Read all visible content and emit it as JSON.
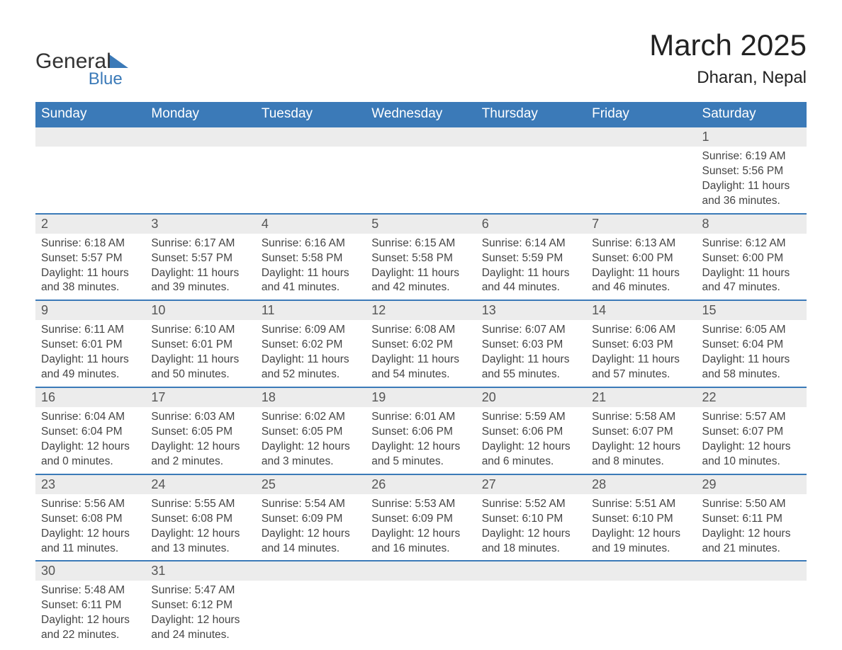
{
  "brand": {
    "name_primary": "General",
    "name_secondary": "Blue",
    "color_primary": "#3b7ab8",
    "text_color": "#333333"
  },
  "title": {
    "month_year": "March 2025",
    "location": "Dharan, Nepal",
    "title_fontsize": 42,
    "location_fontsize": 24,
    "text_color": "#222222"
  },
  "calendar": {
    "type": "table",
    "header_bg": "#3b7ab8",
    "header_text_color": "#ffffff",
    "daynum_bg": "#ececec",
    "daynum_color": "#555555",
    "body_text_color": "#444444",
    "row_border_color": "#3b7ab8",
    "background_color": "#ffffff",
    "columns": [
      "Sunday",
      "Monday",
      "Tuesday",
      "Wednesday",
      "Thursday",
      "Friday",
      "Saturday"
    ],
    "weeks": [
      [
        {
          "blank": true
        },
        {
          "blank": true
        },
        {
          "blank": true
        },
        {
          "blank": true
        },
        {
          "blank": true
        },
        {
          "blank": true
        },
        {
          "day": "1",
          "sunrise": "Sunrise: 6:19 AM",
          "sunset": "Sunset: 5:56 PM",
          "daylight": "Daylight: 11 hours and 36 minutes."
        }
      ],
      [
        {
          "day": "2",
          "sunrise": "Sunrise: 6:18 AM",
          "sunset": "Sunset: 5:57 PM",
          "daylight": "Daylight: 11 hours and 38 minutes."
        },
        {
          "day": "3",
          "sunrise": "Sunrise: 6:17 AM",
          "sunset": "Sunset: 5:57 PM",
          "daylight": "Daylight: 11 hours and 39 minutes."
        },
        {
          "day": "4",
          "sunrise": "Sunrise: 6:16 AM",
          "sunset": "Sunset: 5:58 PM",
          "daylight": "Daylight: 11 hours and 41 minutes."
        },
        {
          "day": "5",
          "sunrise": "Sunrise: 6:15 AM",
          "sunset": "Sunset: 5:58 PM",
          "daylight": "Daylight: 11 hours and 42 minutes."
        },
        {
          "day": "6",
          "sunrise": "Sunrise: 6:14 AM",
          "sunset": "Sunset: 5:59 PM",
          "daylight": "Daylight: 11 hours and 44 minutes."
        },
        {
          "day": "7",
          "sunrise": "Sunrise: 6:13 AM",
          "sunset": "Sunset: 6:00 PM",
          "daylight": "Daylight: 11 hours and 46 minutes."
        },
        {
          "day": "8",
          "sunrise": "Sunrise: 6:12 AM",
          "sunset": "Sunset: 6:00 PM",
          "daylight": "Daylight: 11 hours and 47 minutes."
        }
      ],
      [
        {
          "day": "9",
          "sunrise": "Sunrise: 6:11 AM",
          "sunset": "Sunset: 6:01 PM",
          "daylight": "Daylight: 11 hours and 49 minutes."
        },
        {
          "day": "10",
          "sunrise": "Sunrise: 6:10 AM",
          "sunset": "Sunset: 6:01 PM",
          "daylight": "Daylight: 11 hours and 50 minutes."
        },
        {
          "day": "11",
          "sunrise": "Sunrise: 6:09 AM",
          "sunset": "Sunset: 6:02 PM",
          "daylight": "Daylight: 11 hours and 52 minutes."
        },
        {
          "day": "12",
          "sunrise": "Sunrise: 6:08 AM",
          "sunset": "Sunset: 6:02 PM",
          "daylight": "Daylight: 11 hours and 54 minutes."
        },
        {
          "day": "13",
          "sunrise": "Sunrise: 6:07 AM",
          "sunset": "Sunset: 6:03 PM",
          "daylight": "Daylight: 11 hours and 55 minutes."
        },
        {
          "day": "14",
          "sunrise": "Sunrise: 6:06 AM",
          "sunset": "Sunset: 6:03 PM",
          "daylight": "Daylight: 11 hours and 57 minutes."
        },
        {
          "day": "15",
          "sunrise": "Sunrise: 6:05 AM",
          "sunset": "Sunset: 6:04 PM",
          "daylight": "Daylight: 11 hours and 58 minutes."
        }
      ],
      [
        {
          "day": "16",
          "sunrise": "Sunrise: 6:04 AM",
          "sunset": "Sunset: 6:04 PM",
          "daylight": "Daylight: 12 hours and 0 minutes."
        },
        {
          "day": "17",
          "sunrise": "Sunrise: 6:03 AM",
          "sunset": "Sunset: 6:05 PM",
          "daylight": "Daylight: 12 hours and 2 minutes."
        },
        {
          "day": "18",
          "sunrise": "Sunrise: 6:02 AM",
          "sunset": "Sunset: 6:05 PM",
          "daylight": "Daylight: 12 hours and 3 minutes."
        },
        {
          "day": "19",
          "sunrise": "Sunrise: 6:01 AM",
          "sunset": "Sunset: 6:06 PM",
          "daylight": "Daylight: 12 hours and 5 minutes."
        },
        {
          "day": "20",
          "sunrise": "Sunrise: 5:59 AM",
          "sunset": "Sunset: 6:06 PM",
          "daylight": "Daylight: 12 hours and 6 minutes."
        },
        {
          "day": "21",
          "sunrise": "Sunrise: 5:58 AM",
          "sunset": "Sunset: 6:07 PM",
          "daylight": "Daylight: 12 hours and 8 minutes."
        },
        {
          "day": "22",
          "sunrise": "Sunrise: 5:57 AM",
          "sunset": "Sunset: 6:07 PM",
          "daylight": "Daylight: 12 hours and 10 minutes."
        }
      ],
      [
        {
          "day": "23",
          "sunrise": "Sunrise: 5:56 AM",
          "sunset": "Sunset: 6:08 PM",
          "daylight": "Daylight: 12 hours and 11 minutes."
        },
        {
          "day": "24",
          "sunrise": "Sunrise: 5:55 AM",
          "sunset": "Sunset: 6:08 PM",
          "daylight": "Daylight: 12 hours and 13 minutes."
        },
        {
          "day": "25",
          "sunrise": "Sunrise: 5:54 AM",
          "sunset": "Sunset: 6:09 PM",
          "daylight": "Daylight: 12 hours and 14 minutes."
        },
        {
          "day": "26",
          "sunrise": "Sunrise: 5:53 AM",
          "sunset": "Sunset: 6:09 PM",
          "daylight": "Daylight: 12 hours and 16 minutes."
        },
        {
          "day": "27",
          "sunrise": "Sunrise: 5:52 AM",
          "sunset": "Sunset: 6:10 PM",
          "daylight": "Daylight: 12 hours and 18 minutes."
        },
        {
          "day": "28",
          "sunrise": "Sunrise: 5:51 AM",
          "sunset": "Sunset: 6:10 PM",
          "daylight": "Daylight: 12 hours and 19 minutes."
        },
        {
          "day": "29",
          "sunrise": "Sunrise: 5:50 AM",
          "sunset": "Sunset: 6:11 PM",
          "daylight": "Daylight: 12 hours and 21 minutes."
        }
      ],
      [
        {
          "day": "30",
          "sunrise": "Sunrise: 5:48 AM",
          "sunset": "Sunset: 6:11 PM",
          "daylight": "Daylight: 12 hours and 22 minutes."
        },
        {
          "day": "31",
          "sunrise": "Sunrise: 5:47 AM",
          "sunset": "Sunset: 6:12 PM",
          "daylight": "Daylight: 12 hours and 24 minutes."
        },
        {
          "blank": true
        },
        {
          "blank": true
        },
        {
          "blank": true
        },
        {
          "blank": true
        },
        {
          "blank": true
        }
      ]
    ]
  }
}
